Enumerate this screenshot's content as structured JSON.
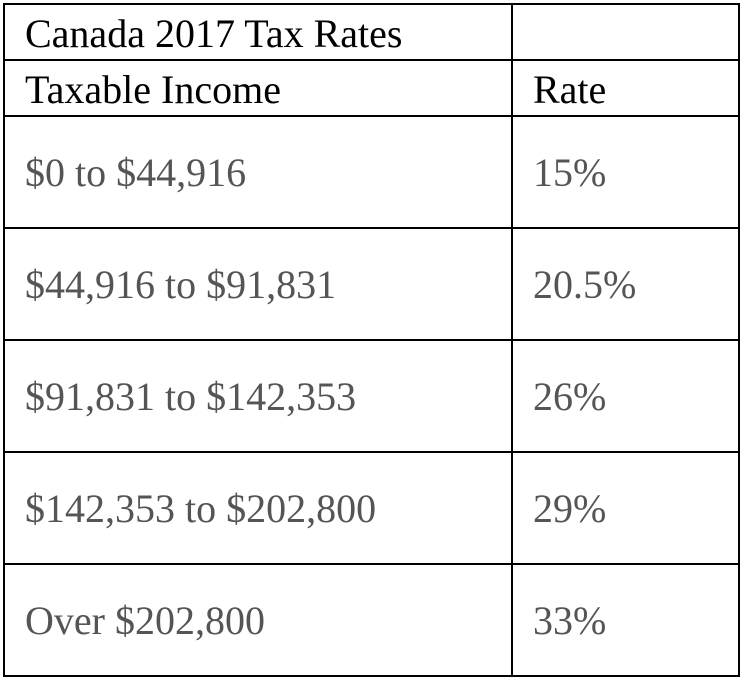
{
  "table": {
    "title": "Canada 2017 Tax Rates",
    "title_right": "",
    "headers": {
      "income": "Taxable Income",
      "rate": "Rate"
    },
    "rows": [
      {
        "income": "$0 to $44,916",
        "rate": "15%"
      },
      {
        "income": "$44,916 to $91,831",
        "rate": "20.5%"
      },
      {
        "income": "$91,831 to $142,353",
        "rate": "26%"
      },
      {
        "income": "$142,353 to $202,800",
        "rate": "29%"
      },
      {
        "income": "Over $202,800",
        "rate": "33%"
      }
    ]
  },
  "colors": {
    "border": "#000000",
    "header_text": "#000000",
    "body_text": "#555555"
  }
}
